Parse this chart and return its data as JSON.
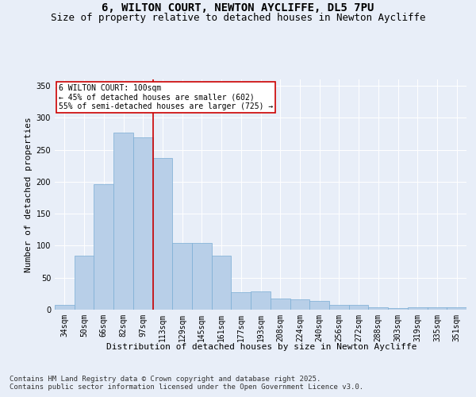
{
  "title": "6, WILTON COURT, NEWTON AYCLIFFE, DL5 7PU",
  "subtitle": "Size of property relative to detached houses in Newton Aycliffe",
  "xlabel": "Distribution of detached houses by size in Newton Aycliffe",
  "ylabel": "Number of detached properties",
  "categories": [
    "34sqm",
    "50sqm",
    "66sqm",
    "82sqm",
    "97sqm",
    "113sqm",
    "129sqm",
    "145sqm",
    "161sqm",
    "177sqm",
    "193sqm",
    "208sqm",
    "224sqm",
    "240sqm",
    "256sqm",
    "272sqm",
    "288sqm",
    "303sqm",
    "319sqm",
    "335sqm",
    "351sqm"
  ],
  "values": [
    7,
    85,
    196,
    277,
    269,
    237,
    104,
    104,
    85,
    27,
    29,
    18,
    16,
    14,
    8,
    7,
    4,
    3,
    4,
    4,
    4
  ],
  "bar_color": "#b8cfe8",
  "bar_edge_color": "#7aadd4",
  "vline_x_index": 4,
  "vline_color": "#cc0000",
  "ylim": [
    0,
    360
  ],
  "yticks": [
    0,
    50,
    100,
    150,
    200,
    250,
    300,
    350
  ],
  "annotation_text": "6 WILTON COURT: 100sqm\n← 45% of detached houses are smaller (602)\n55% of semi-detached houses are larger (725) →",
  "bg_color": "#e8eef8",
  "plot_bg_color": "#e8eef8",
  "footer_line1": "Contains HM Land Registry data © Crown copyright and database right 2025.",
  "footer_line2": "Contains public sector information licensed under the Open Government Licence v3.0.",
  "title_fontsize": 10,
  "subtitle_fontsize": 9,
  "axis_label_fontsize": 8,
  "tick_fontsize": 7,
  "annotation_fontsize": 7,
  "footer_fontsize": 6.5
}
